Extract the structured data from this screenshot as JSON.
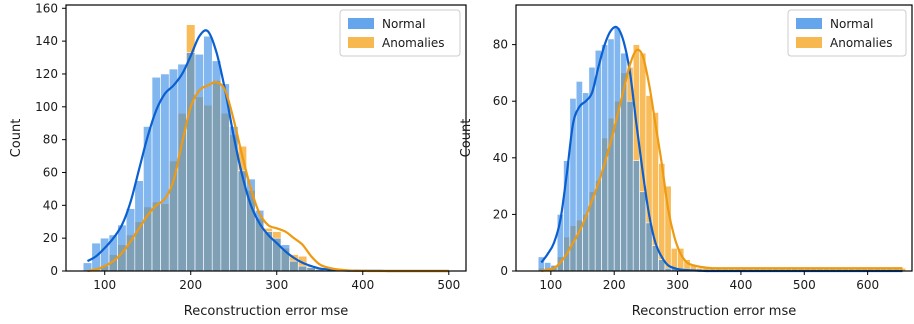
{
  "chart_data": [
    {
      "type": "histogram",
      "xlabel": "Reconstruction error mse",
      "ylabel": "Count",
      "xlim": [
        55,
        520
      ],
      "ylim": [
        0,
        162
      ],
      "xticks": [
        100,
        200,
        300,
        400,
        500
      ],
      "yticks": [
        0,
        20,
        40,
        60,
        80,
        100,
        120,
        140,
        160
      ],
      "grid": false,
      "legend_position": "top-right",
      "bin_edges": [
        75,
        85,
        95,
        105,
        115,
        125,
        135,
        145,
        155,
        165,
        175,
        185,
        195,
        205,
        215,
        225,
        235,
        245,
        255,
        265,
        275,
        285,
        295,
        305,
        315,
        325,
        335,
        345,
        355,
        365,
        375,
        385,
        395,
        405,
        415,
        425,
        435,
        445,
        455,
        465,
        475,
        485,
        495,
        505
      ],
      "series": [
        {
          "name": "Normal",
          "color": "#3d8fe6",
          "counts": [
            5,
            17,
            20,
            22,
            28,
            38,
            55,
            88,
            118,
            120,
            123,
            126,
            133,
            132,
            143,
            128,
            114,
            88,
            61,
            56,
            37,
            24,
            20,
            16,
            6,
            3,
            2,
            1,
            0,
            0,
            0,
            0,
            0,
            0,
            0,
            0,
            0,
            0,
            0,
            0,
            0,
            0,
            0
          ],
          "kde": [
            6,
            9,
            14,
            20,
            28,
            42,
            62,
            82,
            98,
            108,
            113,
            120,
            131,
            143,
            146,
            133,
            110,
            82,
            58,
            40,
            29,
            22,
            17,
            12,
            8,
            5,
            3,
            1.5,
            1,
            0.6,
            0.3,
            0.2,
            0.1,
            0.1,
            0.1,
            0,
            0,
            0,
            0,
            0,
            0,
            0,
            0
          ]
        },
        {
          "name": "Anomalies",
          "color": "#f5a623",
          "counts": [
            0,
            0,
            3,
            10,
            16,
            22,
            30,
            39,
            42,
            41,
            67,
            96,
            150,
            106,
            101,
            116,
            96,
            83,
            76,
            49,
            32,
            26,
            24,
            14,
            10,
            9,
            3,
            1,
            0,
            0,
            0,
            0,
            0,
            0,
            0,
            0,
            0,
            0,
            0,
            0,
            0,
            0,
            0
          ],
          "kde": [
            0,
            1,
            3,
            6,
            11,
            18,
            26,
            34,
            40,
            44,
            55,
            78,
            100,
            110,
            113,
            115,
            110,
            92,
            70,
            50,
            35,
            28,
            26,
            24,
            20,
            16,
            9,
            4,
            2,
            1,
            0.5,
            0.2,
            0.1,
            0,
            0,
            0,
            0,
            0,
            0,
            0,
            0,
            0,
            0
          ]
        }
      ]
    },
    {
      "type": "histogram",
      "xlabel": "Reconstruction error mse",
      "ylabel": "Count",
      "xlim": [
        45,
        670
      ],
      "ylim": [
        0,
        94
      ],
      "xticks": [
        100,
        200,
        300,
        400,
        500,
        600
      ],
      "yticks": [
        0,
        20,
        40,
        60,
        80
      ],
      "grid": false,
      "legend_position": "top-right",
      "bin_edges": [
        80,
        90,
        100,
        110,
        120,
        130,
        140,
        150,
        160,
        170,
        180,
        190,
        200,
        210,
        220,
        230,
        240,
        250,
        260,
        270,
        280,
        290,
        300,
        310,
        320,
        330,
        340,
        350,
        360,
        370,
        380,
        390,
        400,
        410,
        420,
        430,
        440,
        450,
        460,
        470,
        480,
        490,
        500,
        510,
        520,
        530,
        540,
        550,
        560,
        570,
        580,
        590,
        600,
        610,
        620,
        630,
        640,
        650,
        660
      ],
      "series": [
        {
          "name": "Normal",
          "color": "#3d8fe6",
          "counts": [
            5,
            3,
            2,
            20,
            39,
            61,
            67,
            63,
            72,
            78,
            80,
            82,
            86,
            77,
            60,
            39,
            28,
            17,
            9,
            4,
            1,
            1,
            0,
            0,
            0,
            0,
            0,
            0,
            0,
            0,
            0,
            0,
            0,
            0,
            0,
            0,
            0,
            0,
            0,
            0,
            0,
            0,
            0,
            0,
            0,
            0,
            0,
            0,
            0,
            0,
            0,
            0,
            0,
            0,
            0,
            0,
            0,
            0
          ],
          "kde": [
            3,
            6,
            10,
            18,
            34,
            52,
            58,
            60,
            63,
            72,
            80,
            85,
            86,
            81,
            70,
            52,
            35,
            20,
            10,
            5,
            2,
            1,
            0.5,
            0.3,
            0.2,
            0.1,
            0,
            0,
            0,
            0,
            0,
            0,
            0,
            0,
            0,
            0,
            0,
            0,
            0,
            0,
            0,
            0,
            0,
            0,
            0,
            0,
            0,
            0,
            0,
            0,
            0,
            0,
            0,
            0,
            0,
            0,
            0,
            0
          ]
        },
        {
          "name": "Anomalies",
          "color": "#f5a623",
          "counts": [
            1,
            1,
            2,
            5,
            12,
            16,
            18,
            20,
            28,
            32,
            47,
            54,
            60,
            70,
            72,
            80,
            77,
            62,
            56,
            38,
            30,
            8,
            8,
            4,
            2,
            1,
            1,
            1,
            1,
            1,
            1,
            1,
            1,
            1,
            1,
            1,
            1,
            1,
            1,
            1,
            1,
            1,
            1,
            1,
            1,
            1,
            1,
            1,
            1,
            1,
            1,
            1,
            1,
            1,
            1,
            1,
            1,
            1
          ],
          "kde": [
            0,
            0.5,
            1,
            3,
            6,
            10,
            14,
            19,
            25,
            31,
            38,
            46,
            55,
            64,
            73,
            78,
            76,
            66,
            52,
            38,
            22,
            12,
            6,
            3,
            2,
            1.5,
            1.2,
            1,
            1,
            1,
            1,
            1,
            1,
            1,
            1,
            1,
            1,
            1,
            1,
            1,
            1,
            1,
            1,
            1,
            1,
            1,
            1,
            1,
            1,
            1,
            1,
            1,
            1,
            1,
            1,
            1,
            1,
            1
          ]
        }
      ]
    }
  ]
}
